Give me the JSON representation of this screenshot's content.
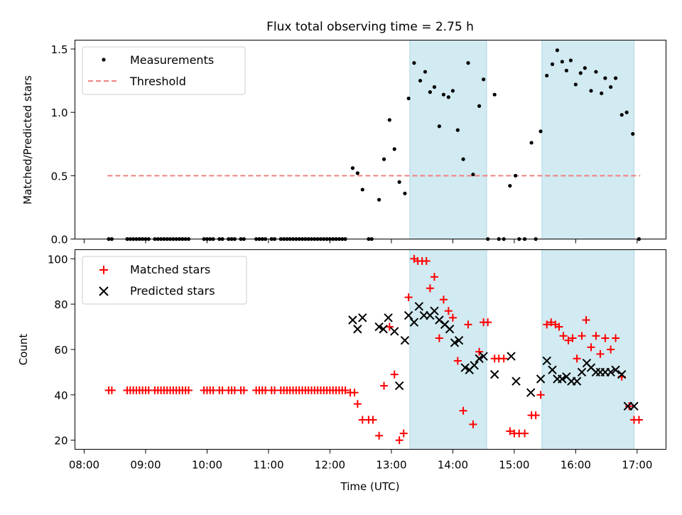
{
  "title": "Flux total observing time = 2.75 h",
  "chart_data": [
    {
      "type": "scatter",
      "ylabel": "Matched/Predicted stars",
      "ylim": [
        0,
        1.57
      ],
      "yticks": [
        "0.0",
        "0.5",
        "1.0",
        "1.5"
      ],
      "ytick_values": [
        0,
        0.5,
        1.0,
        1.5
      ],
      "legend_position": "top-left",
      "legend": [
        {
          "label": "Measurements",
          "kind": "dot",
          "color": "#000000"
        },
        {
          "label": "Threshold",
          "kind": "dashed-line",
          "color": "#f08080"
        }
      ],
      "threshold": {
        "y": 0.5,
        "x_start": 8.38,
        "x_end": 17.05,
        "color": "#f08080"
      },
      "shaded_regions": [
        [
          13.3,
          14.55
        ],
        [
          15.45,
          16.95
        ]
      ],
      "shade_color": "#add8e6",
      "measurements": [
        [
          8.4,
          0
        ],
        [
          8.45,
          0
        ],
        [
          8.7,
          0
        ],
        [
          8.75,
          0
        ],
        [
          8.8,
          0
        ],
        [
          8.85,
          0
        ],
        [
          8.9,
          0
        ],
        [
          8.95,
          0
        ],
        [
          9.0,
          0
        ],
        [
          9.05,
          0
        ],
        [
          9.15,
          0
        ],
        [
          9.2,
          0
        ],
        [
          9.25,
          0
        ],
        [
          9.3,
          0
        ],
        [
          9.35,
          0
        ],
        [
          9.4,
          0
        ],
        [
          9.45,
          0
        ],
        [
          9.5,
          0
        ],
        [
          9.55,
          0
        ],
        [
          9.6,
          0
        ],
        [
          9.65,
          0
        ],
        [
          9.7,
          0
        ],
        [
          9.95,
          0
        ],
        [
          10.0,
          0
        ],
        [
          10.05,
          0
        ],
        [
          10.1,
          0
        ],
        [
          10.2,
          0
        ],
        [
          10.25,
          0
        ],
        [
          10.35,
          0
        ],
        [
          10.4,
          0
        ],
        [
          10.45,
          0
        ],
        [
          10.55,
          0
        ],
        [
          10.6,
          0
        ],
        [
          10.8,
          0
        ],
        [
          10.85,
          0
        ],
        [
          10.9,
          0
        ],
        [
          10.95,
          0
        ],
        [
          11.05,
          0
        ],
        [
          11.1,
          0
        ],
        [
          11.2,
          0
        ],
        [
          11.25,
          0
        ],
        [
          11.3,
          0
        ],
        [
          11.35,
          0
        ],
        [
          11.4,
          0
        ],
        [
          11.45,
          0
        ],
        [
          11.5,
          0
        ],
        [
          11.55,
          0
        ],
        [
          11.6,
          0
        ],
        [
          11.65,
          0
        ],
        [
          11.7,
          0
        ],
        [
          11.75,
          0
        ],
        [
          11.8,
          0
        ],
        [
          11.85,
          0
        ],
        [
          11.9,
          0
        ],
        [
          11.95,
          0
        ],
        [
          12.0,
          0
        ],
        [
          12.05,
          0
        ],
        [
          12.1,
          0
        ],
        [
          12.15,
          0
        ],
        [
          12.2,
          0
        ],
        [
          12.25,
          0
        ],
        [
          12.37,
          0.56
        ],
        [
          12.45,
          0.52
        ],
        [
          12.53,
          0.39
        ],
        [
          12.63,
          0
        ],
        [
          12.68,
          0
        ],
        [
          12.8,
          0.31
        ],
        [
          12.88,
          0.63
        ],
        [
          12.97,
          0.94
        ],
        [
          13.05,
          0.71
        ],
        [
          13.13,
          0.45
        ],
        [
          13.22,
          0.36
        ],
        [
          13.28,
          1.11
        ],
        [
          13.37,
          1.39
        ],
        [
          13.47,
          1.25
        ],
        [
          13.55,
          1.32
        ],
        [
          13.63,
          1.16
        ],
        [
          13.7,
          1.2
        ],
        [
          13.78,
          0.89
        ],
        [
          13.85,
          1.14
        ],
        [
          13.93,
          1.12
        ],
        [
          14.0,
          1.17
        ],
        [
          14.08,
          0.86
        ],
        [
          14.17,
          0.63
        ],
        [
          14.25,
          1.39
        ],
        [
          14.33,
          0.51
        ],
        [
          14.43,
          1.05
        ],
        [
          14.5,
          1.26
        ],
        [
          14.57,
          0
        ],
        [
          14.68,
          1.14
        ],
        [
          14.75,
          0
        ],
        [
          14.83,
          0
        ],
        [
          14.93,
          0.42
        ],
        [
          15.02,
          0.5
        ],
        [
          15.08,
          0
        ],
        [
          15.17,
          0
        ],
        [
          15.28,
          0.76
        ],
        [
          15.35,
          0
        ],
        [
          15.43,
          0.85
        ],
        [
          15.53,
          1.29
        ],
        [
          15.62,
          1.38
        ],
        [
          15.7,
          1.49
        ],
        [
          15.78,
          1.4
        ],
        [
          15.85,
          1.33
        ],
        [
          15.92,
          1.41
        ],
        [
          16.0,
          1.22
        ],
        [
          16.08,
          1.31
        ],
        [
          16.15,
          1.35
        ],
        [
          16.25,
          1.17
        ],
        [
          16.33,
          1.32
        ],
        [
          16.42,
          1.15
        ],
        [
          16.48,
          1.27
        ],
        [
          16.57,
          1.2
        ],
        [
          16.65,
          1.27
        ],
        [
          16.75,
          0.98
        ],
        [
          16.83,
          1.0
        ],
        [
          16.93,
          0.83
        ],
        [
          17.03,
          0
        ]
      ]
    },
    {
      "type": "scatter",
      "ylabel": "Count",
      "xlabel": "Time (UTC)",
      "ylim": [
        16,
        104
      ],
      "xlim": [
        7.85,
        17.47
      ],
      "yticks": [
        "20",
        "40",
        "60",
        "80",
        "100"
      ],
      "ytick_values": [
        20,
        40,
        60,
        80,
        100
      ],
      "xticks": [
        "08:00",
        "09:00",
        "10:00",
        "11:00",
        "12:00",
        "13:00",
        "14:00",
        "15:00",
        "16:00",
        "17:00"
      ],
      "xtick_values": [
        8,
        9,
        10,
        11,
        12,
        13,
        14,
        15,
        16,
        17
      ],
      "legend_position": "top-left",
      "legend": [
        {
          "label": "Matched stars",
          "kind": "plus",
          "color": "#ff0000"
        },
        {
          "label": "Predicted stars",
          "kind": "x",
          "color": "#000000"
        }
      ],
      "shaded_regions": [
        [
          13.3,
          14.55
        ],
        [
          15.45,
          16.95
        ]
      ],
      "shade_color": "#add8e6",
      "matched": [
        [
          8.4,
          42
        ],
        [
          8.45,
          42
        ],
        [
          8.7,
          42
        ],
        [
          8.75,
          42
        ],
        [
          8.8,
          42
        ],
        [
          8.85,
          42
        ],
        [
          8.9,
          42
        ],
        [
          8.95,
          42
        ],
        [
          9.0,
          42
        ],
        [
          9.05,
          42
        ],
        [
          9.15,
          42
        ],
        [
          9.2,
          42
        ],
        [
          9.25,
          42
        ],
        [
          9.3,
          42
        ],
        [
          9.35,
          42
        ],
        [
          9.4,
          42
        ],
        [
          9.45,
          42
        ],
        [
          9.5,
          42
        ],
        [
          9.55,
          42
        ],
        [
          9.6,
          42
        ],
        [
          9.65,
          42
        ],
        [
          9.7,
          42
        ],
        [
          9.95,
          42
        ],
        [
          10.0,
          42
        ],
        [
          10.05,
          42
        ],
        [
          10.1,
          42
        ],
        [
          10.2,
          42
        ],
        [
          10.25,
          42
        ],
        [
          10.35,
          42
        ],
        [
          10.4,
          42
        ],
        [
          10.45,
          42
        ],
        [
          10.55,
          42
        ],
        [
          10.6,
          42
        ],
        [
          10.8,
          42
        ],
        [
          10.85,
          42
        ],
        [
          10.9,
          42
        ],
        [
          10.95,
          42
        ],
        [
          11.05,
          42
        ],
        [
          11.1,
          42
        ],
        [
          11.2,
          42
        ],
        [
          11.25,
          42
        ],
        [
          11.3,
          42
        ],
        [
          11.35,
          42
        ],
        [
          11.4,
          42
        ],
        [
          11.45,
          42
        ],
        [
          11.5,
          42
        ],
        [
          11.55,
          42
        ],
        [
          11.6,
          42
        ],
        [
          11.65,
          42
        ],
        [
          11.7,
          42
        ],
        [
          11.75,
          42
        ],
        [
          11.8,
          42
        ],
        [
          11.85,
          42
        ],
        [
          11.9,
          42
        ],
        [
          11.95,
          42
        ],
        [
          12.0,
          42
        ],
        [
          12.05,
          42
        ],
        [
          12.1,
          42
        ],
        [
          12.15,
          42
        ],
        [
          12.2,
          42
        ],
        [
          12.25,
          42
        ],
        [
          12.33,
          41
        ],
        [
          12.4,
          41
        ],
        [
          12.45,
          36
        ],
        [
          12.53,
          29
        ],
        [
          12.63,
          29
        ],
        [
          12.7,
          29
        ],
        [
          12.8,
          22
        ],
        [
          12.88,
          44
        ],
        [
          12.97,
          70
        ],
        [
          13.05,
          49
        ],
        [
          13.13,
          20
        ],
        [
          13.2,
          23
        ],
        [
          13.28,
          83
        ],
        [
          13.37,
          100
        ],
        [
          13.43,
          99
        ],
        [
          13.5,
          99
        ],
        [
          13.57,
          99
        ],
        [
          13.63,
          87
        ],
        [
          13.7,
          92
        ],
        [
          13.78,
          65
        ],
        [
          13.85,
          82
        ],
        [
          13.93,
          77
        ],
        [
          14.0,
          74
        ],
        [
          14.08,
          55
        ],
        [
          14.17,
          33
        ],
        [
          14.25,
          71
        ],
        [
          14.33,
          27
        ],
        [
          14.43,
          59
        ],
        [
          14.5,
          72
        ],
        [
          14.57,
          72
        ],
        [
          14.68,
          56
        ],
        [
          14.75,
          56
        ],
        [
          14.83,
          56
        ],
        [
          14.93,
          24
        ],
        [
          15.0,
          23
        ],
        [
          15.08,
          23
        ],
        [
          15.17,
          23
        ],
        [
          15.28,
          31
        ],
        [
          15.35,
          31
        ],
        [
          15.43,
          40
        ],
        [
          15.53,
          71
        ],
        [
          15.6,
          72
        ],
        [
          15.67,
          71
        ],
        [
          15.73,
          70
        ],
        [
          15.8,
          66
        ],
        [
          15.88,
          64
        ],
        [
          15.95,
          65
        ],
        [
          16.02,
          56
        ],
        [
          16.1,
          66
        ],
        [
          16.17,
          73
        ],
        [
          16.25,
          61
        ],
        [
          16.33,
          66
        ],
        [
          16.4,
          58
        ],
        [
          16.48,
          65
        ],
        [
          16.57,
          60
        ],
        [
          16.65,
          65
        ],
        [
          16.75,
          48
        ],
        [
          16.87,
          35
        ],
        [
          16.95,
          29
        ],
        [
          17.03,
          29
        ]
      ],
      "predicted": [
        [
          12.37,
          73
        ],
        [
          12.45,
          69
        ],
        [
          12.53,
          74
        ],
        [
          12.8,
          70
        ],
        [
          12.87,
          69
        ],
        [
          12.95,
          74
        ],
        [
          13.05,
          68
        ],
        [
          13.13,
          44
        ],
        [
          13.22,
          64
        ],
        [
          13.28,
          75
        ],
        [
          13.37,
          72
        ],
        [
          13.45,
          79
        ],
        [
          13.53,
          75
        ],
        [
          13.63,
          75
        ],
        [
          13.7,
          77
        ],
        [
          13.78,
          73
        ],
        [
          13.87,
          71
        ],
        [
          13.95,
          69
        ],
        [
          14.03,
          63
        ],
        [
          14.1,
          64
        ],
        [
          14.2,
          52
        ],
        [
          14.27,
          51
        ],
        [
          14.35,
          53
        ],
        [
          14.43,
          56
        ],
        [
          14.5,
          57
        ],
        [
          14.68,
          49
        ],
        [
          14.95,
          57
        ],
        [
          15.03,
          46
        ],
        [
          15.27,
          41
        ],
        [
          15.43,
          47
        ],
        [
          15.53,
          55
        ],
        [
          15.62,
          51
        ],
        [
          15.7,
          47
        ],
        [
          15.78,
          47
        ],
        [
          15.85,
          48
        ],
        [
          15.93,
          46
        ],
        [
          16.02,
          46
        ],
        [
          16.1,
          50
        ],
        [
          16.18,
          54
        ],
        [
          16.25,
          52
        ],
        [
          16.33,
          50
        ],
        [
          16.4,
          50
        ],
        [
          16.48,
          50
        ],
        [
          16.57,
          50
        ],
        [
          16.65,
          51
        ],
        [
          16.75,
          49
        ],
        [
          16.85,
          35
        ],
        [
          16.95,
          35
        ]
      ]
    }
  ]
}
